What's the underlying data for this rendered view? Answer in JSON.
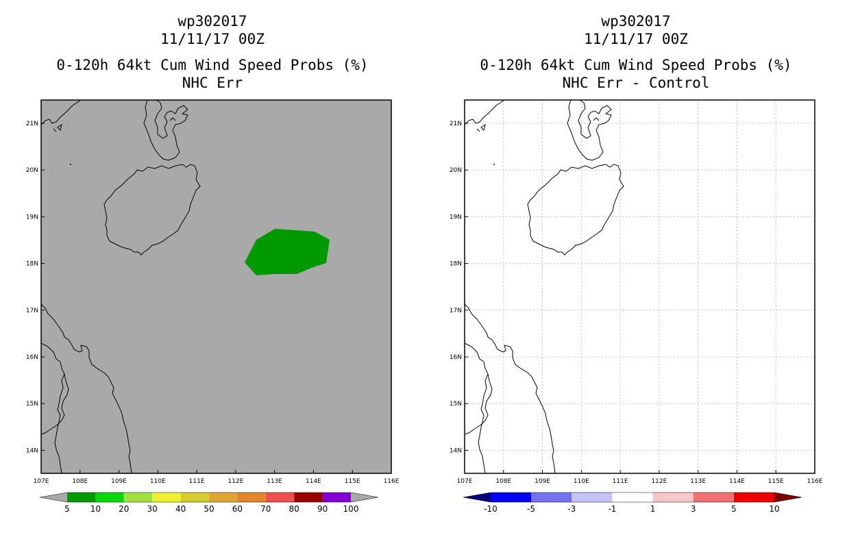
{
  "left_panel": {
    "storm_id": "wp302017",
    "datetime": "11/11/17 00Z",
    "product": "0-120h 64kt Cum Wind Speed Probs (%)",
    "subtitle": "NHC Err",
    "background_color": "#a9a9a9",
    "probability_area_color": "#009900",
    "colorbar": {
      "colors": [
        "#a9a9a9",
        "#019a01",
        "#07d907",
        "#a0e23a",
        "#efef33",
        "#d9cc2c",
        "#dea72f",
        "#e5852e",
        "#f24b50",
        "#9a0000",
        "#8400d8",
        "#a9a9a9"
      ],
      "labels": [
        "5",
        "10",
        "20",
        "30",
        "40",
        "50",
        "60",
        "70",
        "80",
        "90",
        "100"
      ]
    }
  },
  "right_panel": {
    "storm_id": "wp302017",
    "datetime": "11/11/17 00Z",
    "product": "0-120h 64kt Cum Wind Speed Probs (%)",
    "subtitle": "NHC Err - Control",
    "colorbar": {
      "colors": [
        "#00007d",
        "#0000ee",
        "#7373ef",
        "#c4c4f8",
        "#ffffff",
        "#f7c6c6",
        "#f27272",
        "#ee0000",
        "#7d0000"
      ],
      "labels": [
        "-10",
        "-5",
        "-3",
        "-1",
        "1",
        "3",
        "5",
        "10"
      ]
    }
  },
  "axes": {
    "lon_labels": [
      "107E",
      "108E",
      "109E",
      "110E",
      "111E",
      "112E",
      "113E",
      "114E",
      "115E",
      "116E"
    ],
    "lat_labels": [
      "21N",
      "20N",
      "19N",
      "18N",
      "17N",
      "16N",
      "15N",
      "14N"
    ]
  }
}
